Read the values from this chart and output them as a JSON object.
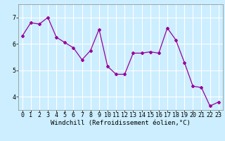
{
  "x": [
    0,
    1,
    2,
    3,
    4,
    5,
    6,
    7,
    8,
    9,
    10,
    11,
    12,
    13,
    14,
    15,
    16,
    17,
    18,
    19,
    20,
    21,
    22,
    23
  ],
  "y": [
    6.3,
    6.8,
    6.75,
    7.0,
    6.25,
    6.05,
    5.85,
    5.4,
    5.75,
    6.55,
    5.15,
    4.85,
    4.85,
    5.65,
    5.65,
    5.7,
    5.65,
    6.6,
    6.15,
    5.3,
    4.4,
    4.35,
    3.65,
    3.8
  ],
  "line_color": "#990099",
  "marker": "D",
  "markersize": 2.0,
  "linewidth": 0.9,
  "bg_color": "#cceeff",
  "grid_color": "#ffffff",
  "xlabel": "Windchill (Refroidissement éolien,°C)",
  "xlabel_fontsize": 6.5,
  "tick_fontsize": 6.0,
  "ylim": [
    3.5,
    7.5
  ],
  "yticks": [
    4,
    5,
    6,
    7
  ],
  "xticks": [
    0,
    1,
    2,
    3,
    4,
    5,
    6,
    7,
    8,
    9,
    10,
    11,
    12,
    13,
    14,
    15,
    16,
    17,
    18,
    19,
    20,
    21,
    22,
    23
  ]
}
